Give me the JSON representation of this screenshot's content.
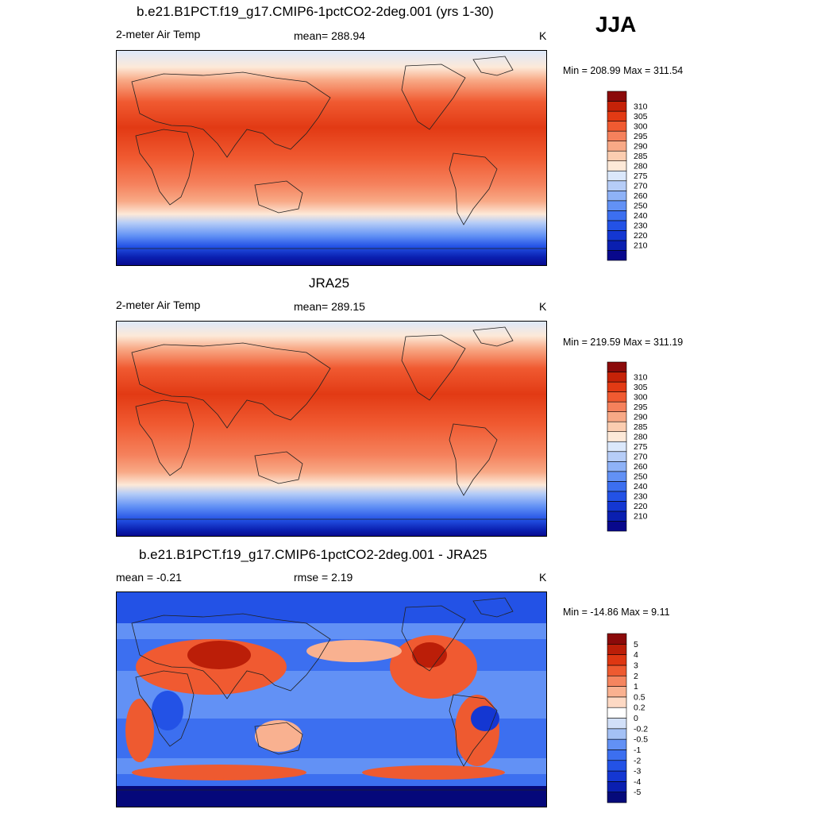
{
  "season": "JJA",
  "panels": [
    {
      "title": "b.e21.B1PCT.f19_g17.CMIP6-1pctCO2-2deg.001 (yrs 1-30)",
      "left_label": "2-meter Air Temp",
      "center_label": "mean= 288.94",
      "unit": "K",
      "minmax": "Min = 208.99 Max = 311.54",
      "colorbar": {
        "colors": [
          "#08088c",
          "#0a1fb0",
          "#1437d2",
          "#2352e6",
          "#3c6ff0",
          "#6291f5",
          "#8eb2f7",
          "#b6cdf7",
          "#dbe8fb",
          "#fde9d8",
          "#fbcdb0",
          "#f8a986",
          "#f5815c",
          "#f05a31",
          "#e23a14",
          "#c52208",
          "#8b0a0a"
        ],
        "labels": [
          "210",
          "220",
          "230",
          "240",
          "250",
          "260",
          "270",
          "275",
          "280",
          "285",
          "290",
          "295",
          "300",
          "305",
          "310"
        ]
      }
    },
    {
      "title": "JRA25",
      "left_label": "2-meter Air Temp",
      "center_label": "mean= 289.15",
      "unit": "K",
      "minmax": "Min = 219.59 Max = 311.19",
      "colorbar": {
        "colors": [
          "#08088c",
          "#0a1fb0",
          "#1437d2",
          "#2352e6",
          "#3c6ff0",
          "#6291f5",
          "#8eb2f7",
          "#b6cdf7",
          "#dbe8fb",
          "#fde9d8",
          "#fbcdb0",
          "#f8a986",
          "#f5815c",
          "#f05a31",
          "#e23a14",
          "#c52208",
          "#8b0a0a"
        ],
        "labels": [
          "210",
          "220",
          "230",
          "240",
          "250",
          "260",
          "270",
          "275",
          "280",
          "285",
          "290",
          "295",
          "300",
          "305",
          "310"
        ]
      }
    },
    {
      "title": "b.e21.B1PCT.f19_g17.CMIP6-1pctCO2-2deg.001 - JRA25",
      "left_label": "mean =  -0.21",
      "center_label": "rmse =   2.19",
      "unit": "K",
      "minmax": "Min = -14.86 Max =   9.11",
      "colorbar": {
        "colors": [
          "#050a7a",
          "#0a1fb0",
          "#1437d2",
          "#2352e6",
          "#3c6ff0",
          "#6291f5",
          "#a4c1f5",
          "#d2e0f8",
          "#ffffff",
          "#fdd9c4",
          "#f9b190",
          "#f5855f",
          "#ee5a30",
          "#de3712",
          "#bb1e08",
          "#8b0a0a"
        ],
        "labels": [
          "-5",
          "-4",
          "-3",
          "-2",
          "-1",
          "-0.5",
          "-0.2",
          "0",
          "0.2",
          "0.5",
          "1",
          "2",
          "3",
          "4",
          "5"
        ]
      }
    }
  ]
}
